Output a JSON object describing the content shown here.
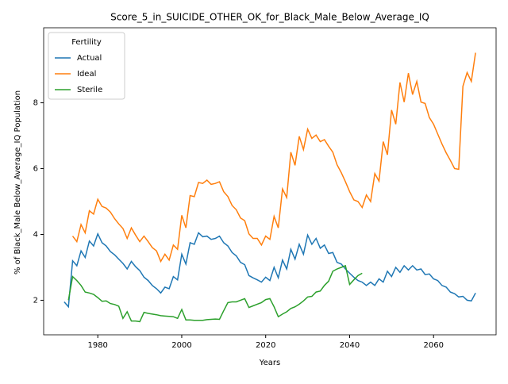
{
  "chart_data": {
    "type": "line",
    "title": "Score_5_in_SUICIDE_OTHER_OK_for_Black_Male_Below_Average_IQ",
    "x_label": "Years",
    "y_label": "% of Black_Male Below_Average_IQ Population",
    "legend_title": "Fertility",
    "legend_position": "upper left",
    "x": [
      1972,
      1973,
      1974,
      1975,
      1976,
      1977,
      1978,
      1979,
      1980,
      1981,
      1982,
      1983,
      1984,
      1985,
      1986,
      1987,
      1988,
      1989,
      1990,
      1991,
      1992,
      1993,
      1994,
      1995,
      1996,
      1997,
      1998,
      1999,
      2000,
      2001,
      2002,
      2003,
      2004,
      2005,
      2006,
      2007,
      2008,
      2009,
      2010,
      2011,
      2012,
      2013,
      2014,
      2015,
      2016,
      2017,
      2018,
      2019,
      2020,
      2021,
      2022,
      2023,
      2024,
      2025,
      2026,
      2027,
      2028,
      2029,
      2030,
      2031,
      2032,
      2033,
      2034,
      2035,
      2036,
      2037,
      2038,
      2039,
      2040,
      2041,
      2042,
      2043,
      2044,
      2045,
      2046,
      2047,
      2048,
      2049,
      2050,
      2051,
      2052,
      2053,
      2054,
      2055,
      2056,
      2057,
      2058,
      2059,
      2060,
      2061,
      2062,
      2063,
      2064,
      2065,
      2066,
      2067,
      2068,
      2069,
      2070
    ],
    "series": [
      {
        "name": "Actual",
        "color": "#1f77b4",
        "values": [
          1.95,
          1.8,
          3.2,
          3.05,
          3.5,
          3.3,
          3.8,
          3.65,
          4.02,
          3.75,
          3.65,
          3.48,
          3.38,
          3.25,
          3.12,
          2.95,
          3.18,
          3.02,
          2.9,
          2.7,
          2.6,
          2.45,
          2.35,
          2.22,
          2.4,
          2.35,
          2.72,
          2.62,
          3.4,
          3.1,
          3.75,
          3.7,
          4.05,
          3.93,
          3.95,
          3.85,
          3.88,
          3.95,
          3.75,
          3.65,
          3.45,
          3.35,
          3.15,
          3.08,
          2.75,
          2.68,
          2.62,
          2.55,
          2.7,
          2.6,
          3.0,
          2.68,
          3.22,
          2.95,
          3.55,
          3.25,
          3.7,
          3.4,
          3.98,
          3.7,
          3.88,
          3.58,
          3.68,
          3.42,
          3.45,
          3.15,
          3.1,
          2.95,
          2.82,
          2.7,
          2.6,
          2.55,
          2.45,
          2.55,
          2.45,
          2.65,
          2.55,
          2.88,
          2.72,
          3.0,
          2.85,
          3.05,
          2.92,
          3.05,
          2.92,
          2.95,
          2.78,
          2.8,
          2.65,
          2.6,
          2.45,
          2.4,
          2.25,
          2.2,
          2.1,
          2.12,
          2.0,
          1.98,
          2.22
        ]
      },
      {
        "name": "Ideal",
        "color": "#ff7f0e",
        "values": [
          null,
          null,
          3.95,
          3.78,
          4.3,
          4.05,
          4.72,
          4.62,
          5.07,
          4.85,
          4.8,
          4.68,
          4.48,
          4.32,
          4.18,
          3.88,
          4.2,
          3.98,
          3.78,
          3.95,
          3.78,
          3.6,
          3.5,
          3.18,
          3.4,
          3.22,
          3.68,
          3.55,
          4.58,
          4.2,
          5.18,
          5.15,
          5.58,
          5.55,
          5.65,
          5.52,
          5.55,
          5.6,
          5.3,
          5.15,
          4.88,
          4.75,
          4.5,
          4.42,
          4.02,
          3.88,
          3.88,
          3.68,
          3.95,
          3.85,
          4.55,
          4.2,
          5.38,
          5.12,
          6.5,
          6.1,
          6.98,
          6.58,
          7.2,
          6.92,
          7.02,
          6.82,
          6.88,
          6.68,
          6.5,
          6.12,
          5.88,
          5.6,
          5.3,
          5.05,
          5.0,
          4.82,
          5.2,
          5.0,
          5.85,
          5.62,
          6.82,
          6.42,
          7.78,
          7.35,
          8.62,
          8.02,
          8.9,
          8.25,
          8.65,
          8.02,
          7.98,
          7.55,
          7.35,
          7.05,
          6.75,
          6.48,
          6.25,
          6.0,
          5.98,
          8.5,
          8.92,
          8.65,
          9.52
        ]
      },
      {
        "name": "Sterile",
        "color": "#2ca02c",
        "values": [
          null,
          2.0,
          2.72,
          2.6,
          2.45,
          2.25,
          2.22,
          2.18,
          2.08,
          1.97,
          1.98,
          1.9,
          1.87,
          1.82,
          1.45,
          1.65,
          1.37,
          1.37,
          1.35,
          1.63,
          1.6,
          1.58,
          1.56,
          1.53,
          1.52,
          1.51,
          1.5,
          1.45,
          1.72,
          1.4,
          1.4,
          1.39,
          1.39,
          1.39,
          1.41,
          1.42,
          1.43,
          1.42,
          1.68,
          1.93,
          1.95,
          1.95,
          2.0,
          2.05,
          1.78,
          1.83,
          1.88,
          1.93,
          2.02,
          2.05,
          1.8,
          1.5,
          1.58,
          1.65,
          1.75,
          1.8,
          1.88,
          1.98,
          2.1,
          2.12,
          2.25,
          2.28,
          2.45,
          2.58,
          2.88,
          2.95,
          3.0,
          3.05,
          2.48,
          2.62,
          2.75,
          2.82,
          null,
          null,
          null,
          null,
          null,
          null,
          null,
          null,
          null,
          null,
          null,
          null,
          null,
          null,
          null,
          null,
          null,
          null,
          null,
          null,
          null,
          null,
          null,
          null,
          null,
          null,
          null
        ]
      }
    ],
    "xlim": [
      1967.1,
      2074.9
    ],
    "ylim": [
      0.95,
      10.28
    ],
    "xticks": [
      1980,
      2000,
      2020,
      2040,
      2060
    ],
    "yticks": [
      2,
      4,
      6,
      8
    ]
  }
}
